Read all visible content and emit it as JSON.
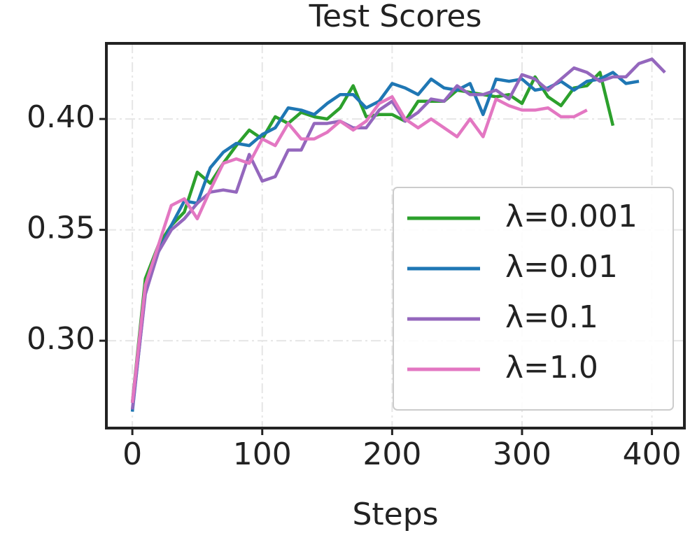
{
  "chart_data": {
    "type": "line",
    "title": "Test Scores",
    "xlabel": "Steps",
    "xlim": [
      -20,
      425
    ],
    "ylim": [
      0.2606,
      0.4341
    ],
    "xticks": [
      0,
      100,
      200,
      300,
      400
    ],
    "yticks": [
      {
        "value": 0.3,
        "label": "0.30"
      },
      {
        "value": 0.35,
        "label": "0.35"
      },
      {
        "value": 0.4,
        "label": "0.40"
      }
    ],
    "grid": true,
    "legend": "lower right",
    "series": [
      {
        "name": "λ=0.001",
        "color": "#2ca02c",
        "x": [
          0,
          10,
          20,
          30,
          40,
          50,
          60,
          70,
          80,
          90,
          100,
          110,
          120,
          130,
          140,
          150,
          160,
          170,
          180,
          190,
          200,
          210,
          220,
          230,
          240,
          250,
          260,
          270,
          280,
          290,
          300,
          310,
          320,
          330,
          340,
          350,
          360,
          370
        ],
        "values": [
          0.272,
          0.328,
          0.343,
          0.352,
          0.358,
          0.376,
          0.371,
          0.38,
          0.388,
          0.395,
          0.391,
          0.401,
          0.398,
          0.403,
          0.401,
          0.4,
          0.405,
          0.415,
          0.401,
          0.402,
          0.402,
          0.399,
          0.408,
          0.408,
          0.408,
          0.413,
          0.412,
          0.411,
          0.41,
          0.411,
          0.407,
          0.419,
          0.41,
          0.406,
          0.414,
          0.415,
          0.421,
          0.397
        ]
      },
      {
        "name": "λ=0.01",
        "color": "#1f77b4",
        "x": [
          0,
          10,
          20,
          30,
          40,
          50,
          60,
          70,
          80,
          90,
          100,
          110,
          120,
          130,
          140,
          150,
          160,
          170,
          180,
          190,
          200,
          210,
          220,
          230,
          240,
          250,
          260,
          270,
          280,
          290,
          300,
          310,
          320,
          330,
          340,
          350,
          360,
          370,
          380,
          390
        ],
        "values": [
          0.268,
          0.322,
          0.34,
          0.352,
          0.363,
          0.362,
          0.378,
          0.385,
          0.389,
          0.388,
          0.393,
          0.396,
          0.405,
          0.404,
          0.402,
          0.407,
          0.411,
          0.411,
          0.405,
          0.408,
          0.416,
          0.414,
          0.411,
          0.418,
          0.414,
          0.413,
          0.416,
          0.402,
          0.418,
          0.417,
          0.418,
          0.413,
          0.414,
          0.417,
          0.413,
          0.417,
          0.418,
          0.421,
          0.416,
          0.417
        ]
      },
      {
        "name": "λ=0.1",
        "color": "#9467bd",
        "x": [
          0,
          10,
          20,
          30,
          40,
          50,
          60,
          70,
          80,
          90,
          100,
          110,
          120,
          130,
          140,
          150,
          160,
          170,
          180,
          190,
          200,
          210,
          220,
          230,
          240,
          250,
          260,
          270,
          280,
          290,
          300,
          310,
          320,
          330,
          340,
          350,
          360,
          370,
          380,
          390,
          400,
          410
        ],
        "values": [
          0.269,
          0.321,
          0.34,
          0.35,
          0.355,
          0.362,
          0.367,
          0.368,
          0.367,
          0.384,
          0.372,
          0.374,
          0.386,
          0.386,
          0.398,
          0.398,
          0.399,
          0.396,
          0.396,
          0.404,
          0.408,
          0.399,
          0.403,
          0.409,
          0.408,
          0.415,
          0.411,
          0.411,
          0.413,
          0.409,
          0.42,
          0.418,
          0.413,
          0.418,
          0.423,
          0.421,
          0.417,
          0.419,
          0.419,
          0.425,
          0.427,
          0.421
        ]
      },
      {
        "name": "λ=1.0",
        "color": "#e377c2",
        "x": [
          0,
          10,
          20,
          30,
          40,
          50,
          60,
          70,
          80,
          90,
          100,
          110,
          120,
          130,
          140,
          150,
          160,
          170,
          180,
          190,
          200,
          210,
          220,
          230,
          240,
          250,
          260,
          270,
          280,
          290,
          300,
          310,
          320,
          330,
          340,
          350
        ],
        "values": [
          0.272,
          0.325,
          0.343,
          0.361,
          0.364,
          0.355,
          0.368,
          0.38,
          0.382,
          0.38,
          0.391,
          0.388,
          0.398,
          0.391,
          0.391,
          0.394,
          0.399,
          0.395,
          0.399,
          0.407,
          0.41,
          0.4,
          0.396,
          0.4,
          0.396,
          0.392,
          0.4,
          0.392,
          0.409,
          0.406,
          0.404,
          0.404,
          0.405,
          0.401,
          0.401,
          0.404
        ]
      }
    ]
  }
}
